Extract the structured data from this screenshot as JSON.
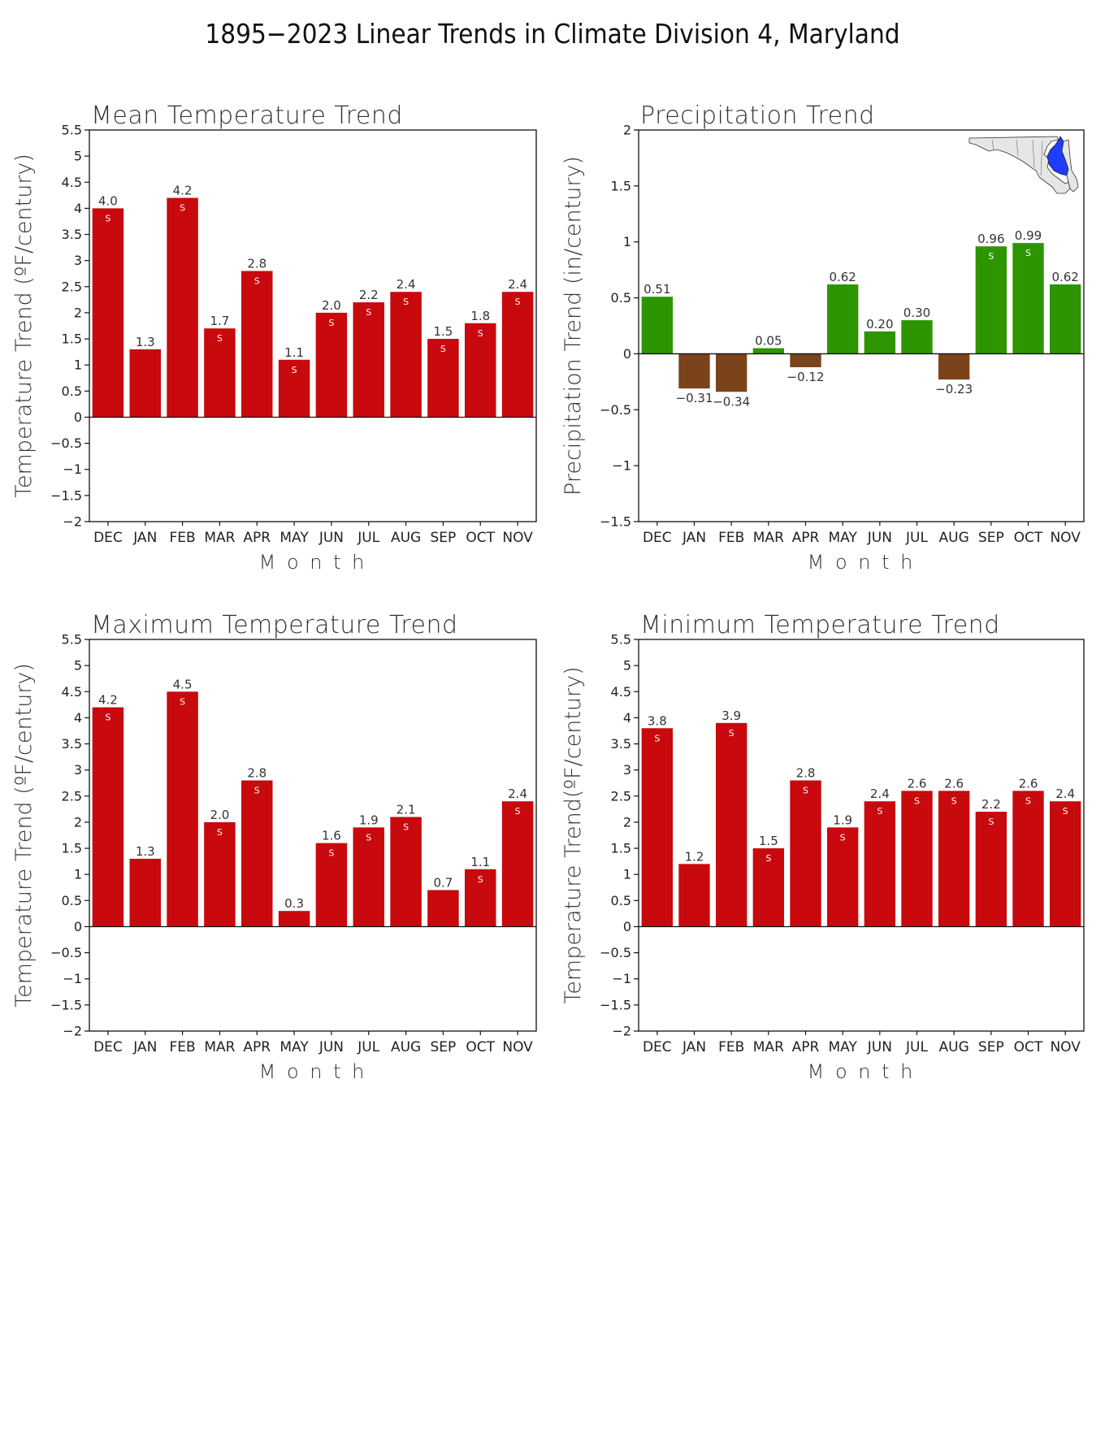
{
  "title": "1895−2023 Linear Trends in Climate Division 4, Maryland",
  "colors": {
    "temperature_bar": "#c8090d",
    "precip_positive": "#2d9500",
    "precip_negative": "#7b4319",
    "axis": "#111111",
    "text": "#222222",
    "map_fill": "#e6e6e6",
    "map_highlight": "#1f3cff"
  },
  "chart_data": [
    {
      "type": "bar",
      "title": "Mean Temperature Trend",
      "xlabel": "M o n t h",
      "ylabel": "Temperature Trend (ºF/century)",
      "categories": [
        "DEC",
        "JAN",
        "FEB",
        "MAR",
        "APR",
        "MAY",
        "JUN",
        "JUL",
        "AUG",
        "SEP",
        "OCT",
        "NOV"
      ],
      "values": [
        4.0,
        1.3,
        4.2,
        1.7,
        2.8,
        1.1,
        2.0,
        2.2,
        2.4,
        1.5,
        1.8,
        2.4
      ],
      "labels": [
        "4.0",
        "1.3",
        "4.2",
        "1.7",
        "2.8",
        "1.1",
        "2.0",
        "2.2",
        "2.4",
        "1.5",
        "1.8",
        "2.4"
      ],
      "significant": [
        true,
        false,
        true,
        true,
        true,
        true,
        true,
        true,
        true,
        true,
        true,
        true
      ],
      "sig_marker": "S",
      "ylim": [
        -2,
        5.5
      ],
      "yticks": [
        "−2",
        "−1.5",
        "−1",
        "−0.5",
        "0",
        "0.5",
        "1",
        "1.5",
        "2",
        "2.5",
        "3",
        "3.5",
        "4",
        "4.5",
        "5",
        "5.5"
      ],
      "ytick_values": [
        -2,
        -1.5,
        -1,
        -0.5,
        0,
        0.5,
        1,
        1.5,
        2,
        2.5,
        3,
        3.5,
        4,
        4.5,
        5,
        5.5
      ],
      "color_scheme": "temperature"
    },
    {
      "type": "bar",
      "title": "Precipitation Trend",
      "xlabel": "M o n t h",
      "ylabel": "Precipitation Trend (in/century)",
      "categories": [
        "DEC",
        "JAN",
        "FEB",
        "MAR",
        "APR",
        "MAY",
        "JUN",
        "JUL",
        "AUG",
        "SEP",
        "OCT",
        "NOV"
      ],
      "values": [
        0.51,
        -0.31,
        -0.34,
        0.05,
        -0.12,
        0.62,
        0.2,
        0.3,
        -0.23,
        0.96,
        0.99,
        0.62
      ],
      "labels": [
        "0.51",
        "−0.31",
        "−0.34",
        "0.05",
        "−0.12",
        "0.62",
        "0.20",
        "0.30",
        "−0.23",
        "0.96",
        "0.99",
        "0.62"
      ],
      "significant": [
        false,
        false,
        false,
        false,
        false,
        false,
        false,
        false,
        false,
        true,
        true,
        false
      ],
      "sig_marker": "S",
      "ylim": [
        -1.5,
        2
      ],
      "yticks": [
        "−1.5",
        "−1",
        "−0.5",
        "0",
        "0.5",
        "1",
        "1.5",
        "2"
      ],
      "ytick_values": [
        -1.5,
        -1,
        -0.5,
        0,
        0.5,
        1,
        1.5,
        2
      ],
      "color_scheme": "precipitation",
      "has_map": true
    },
    {
      "type": "bar",
      "title": "Maximum Temperature Trend",
      "xlabel": "M o n t h",
      "ylabel": "Temperature Trend (ºF/century)",
      "categories": [
        "DEC",
        "JAN",
        "FEB",
        "MAR",
        "APR",
        "MAY",
        "JUN",
        "JUL",
        "AUG",
        "SEP",
        "OCT",
        "NOV"
      ],
      "values": [
        4.2,
        1.3,
        4.5,
        2.0,
        2.8,
        0.3,
        1.6,
        1.9,
        2.1,
        0.7,
        1.1,
        2.4
      ],
      "labels": [
        "4.2",
        "1.3",
        "4.5",
        "2.0",
        "2.8",
        "0.3",
        "1.6",
        "1.9",
        "2.1",
        "0.7",
        "1.1",
        "2.4"
      ],
      "significant": [
        true,
        false,
        true,
        true,
        true,
        false,
        true,
        true,
        true,
        false,
        true,
        true
      ],
      "sig_marker": "S",
      "ylim": [
        -2,
        5.5
      ],
      "yticks": [
        "−2",
        "−1.5",
        "−1",
        "−0.5",
        "0",
        "0.5",
        "1",
        "1.5",
        "2",
        "2.5",
        "3",
        "3.5",
        "4",
        "4.5",
        "5",
        "5.5"
      ],
      "ytick_values": [
        -2,
        -1.5,
        -1,
        -0.5,
        0,
        0.5,
        1,
        1.5,
        2,
        2.5,
        3,
        3.5,
        4,
        4.5,
        5,
        5.5
      ],
      "color_scheme": "temperature"
    },
    {
      "type": "bar",
      "title": "Minimum Temperature Trend",
      "xlabel": "M o n t h",
      "ylabel": "Temperature Trend(ºF/century)",
      "categories": [
        "DEC",
        "JAN",
        "FEB",
        "MAR",
        "APR",
        "MAY",
        "JUN",
        "JUL",
        "AUG",
        "SEP",
        "OCT",
        "NOV"
      ],
      "values": [
        3.8,
        1.2,
        3.9,
        1.5,
        2.8,
        1.9,
        2.4,
        2.6,
        2.6,
        2.2,
        2.6,
        2.4
      ],
      "labels": [
        "3.8",
        "1.2",
        "3.9",
        "1.5",
        "2.8",
        "1.9",
        "2.4",
        "2.6",
        "2.6",
        "2.2",
        "2.6",
        "2.4"
      ],
      "significant": [
        true,
        false,
        true,
        true,
        true,
        true,
        true,
        true,
        true,
        true,
        true,
        true
      ],
      "sig_marker": "S",
      "ylim": [
        -2,
        5.5
      ],
      "yticks": [
        "−2",
        "−1.5",
        "−1",
        "−0.5",
        "0",
        "0.5",
        "1",
        "1.5",
        "2",
        "2.5",
        "3",
        "3.5",
        "4",
        "4.5",
        "5",
        "5.5"
      ],
      "ytick_values": [
        -2,
        -1.5,
        -1,
        -0.5,
        0,
        0.5,
        1,
        1.5,
        2,
        2.5,
        3,
        3.5,
        4,
        4.5,
        5,
        5.5
      ],
      "color_scheme": "temperature"
    }
  ]
}
